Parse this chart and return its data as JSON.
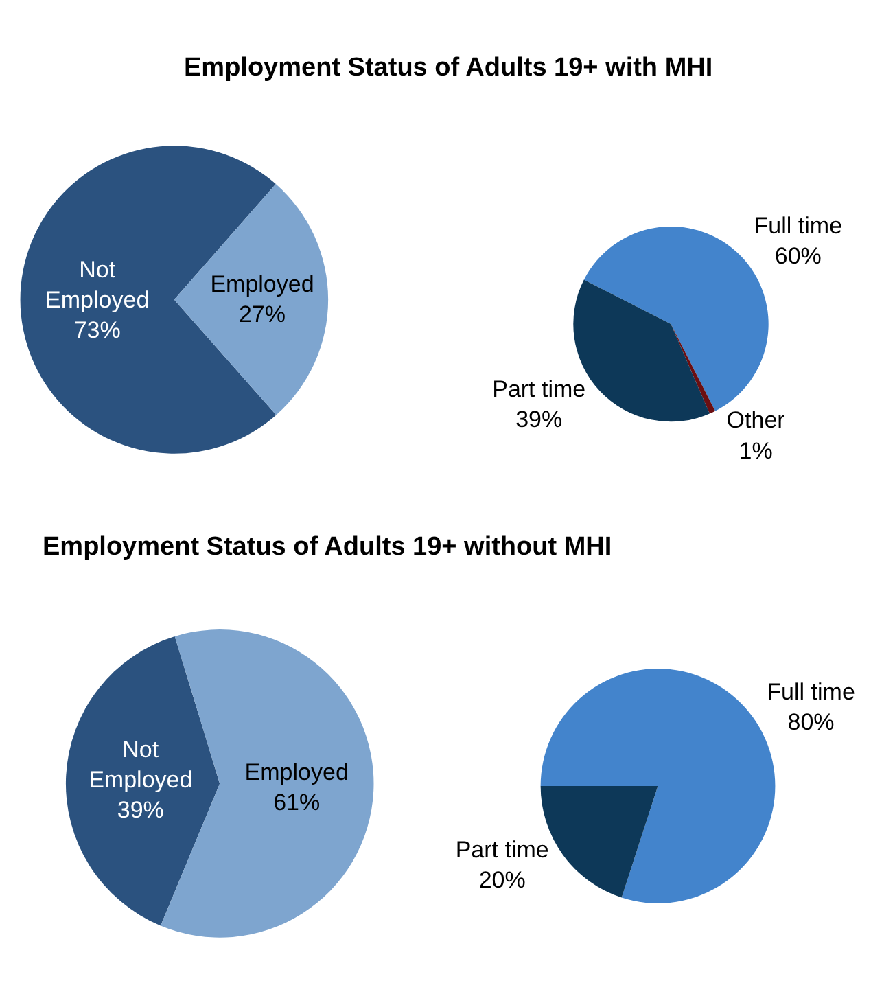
{
  "chart_data": [
    {
      "type": "pie",
      "title": "Employment Status of Adults 19+ with MHI",
      "categories": [
        "Not Employed",
        "Employed"
      ],
      "values": [
        73,
        27
      ],
      "colors": [
        "#2b527f",
        "#7ea5cf"
      ],
      "value_labels": [
        "73%",
        "27%"
      ]
    },
    {
      "type": "pie",
      "categories": [
        "Full time",
        "Other",
        "Part time"
      ],
      "values": [
        60,
        1,
        39
      ],
      "colors": [
        "#4384cc",
        "#6b0f12",
        "#0d3858"
      ],
      "value_labels": [
        "60%",
        "1%",
        "39%"
      ]
    },
    {
      "type": "pie",
      "title": "Employment Status of Adults 19+ without MHI",
      "categories": [
        "Not Employed",
        "Employed"
      ],
      "values": [
        39,
        61
      ],
      "colors": [
        "#2b527f",
        "#7ea5cf"
      ],
      "value_labels": [
        "39%",
        "61%"
      ]
    },
    {
      "type": "pie",
      "categories": [
        "Full time",
        "Part time"
      ],
      "values": [
        80,
        20
      ],
      "colors": [
        "#4384cc",
        "#0d3858"
      ],
      "value_labels": [
        "80%",
        "20%"
      ]
    }
  ]
}
